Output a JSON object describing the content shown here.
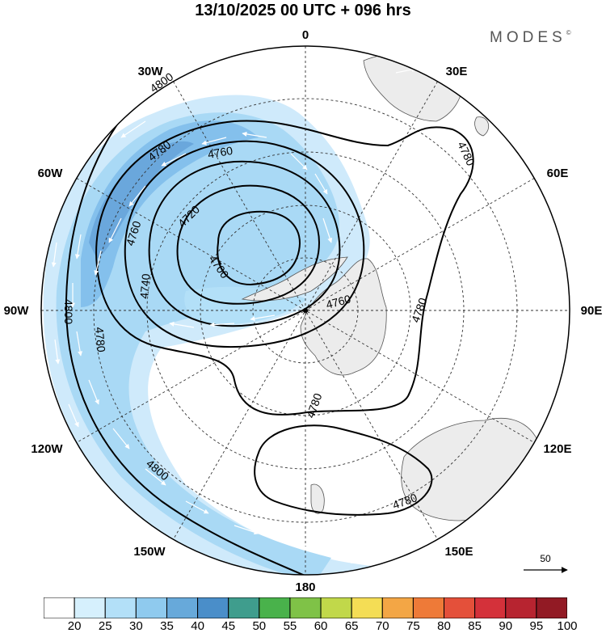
{
  "title": "13/10/2025  00 UTC  + 096 hrs",
  "brand": "MODES",
  "brand_mark": "©",
  "longitude_labels": {
    "lon_0": "0",
    "lon_30e": "30E",
    "lon_60e": "60E",
    "lon_90e": "90E",
    "lon_120e": "120E",
    "lon_150e": "150E",
    "lon_180": "180",
    "lon_150w": "150W",
    "lon_120w": "120W",
    "lon_90w": "90W",
    "lon_60w": "60W",
    "lon_30w": "30W"
  },
  "contour_labels": {
    "c4800_a": "4800",
    "c4780_a": "4780",
    "c4760_a": "4760",
    "c4720": "4720",
    "c4760_b": "4760",
    "c4740": "4740",
    "c4700": "4700",
    "c4800_b": "4800",
    "c4780_b": "4780",
    "c4760_c": "4760",
    "c4780_c": "4780",
    "c4780_d": "4780",
    "c4780_e": "4780",
    "c4800_c": "4800",
    "c4780_f": "4780"
  },
  "reference_vector": "50",
  "colorbar": {
    "ticks": [
      "20",
      "25",
      "30",
      "35",
      "40",
      "45",
      "50",
      "55",
      "60",
      "65",
      "70",
      "75",
      "80",
      "85",
      "90",
      "95",
      "100"
    ],
    "colors": [
      "#ffffff",
      "#d6f0fd",
      "#b3e0f8",
      "#8fcaee",
      "#67a9da",
      "#4a8ec9",
      "#3f9d8d",
      "#49b24b",
      "#7fc247",
      "#c1d84a",
      "#f4dd55",
      "#f3a645",
      "#ee7a38",
      "#e4503a",
      "#d4313a",
      "#b72430",
      "#921a24"
    ]
  }
}
